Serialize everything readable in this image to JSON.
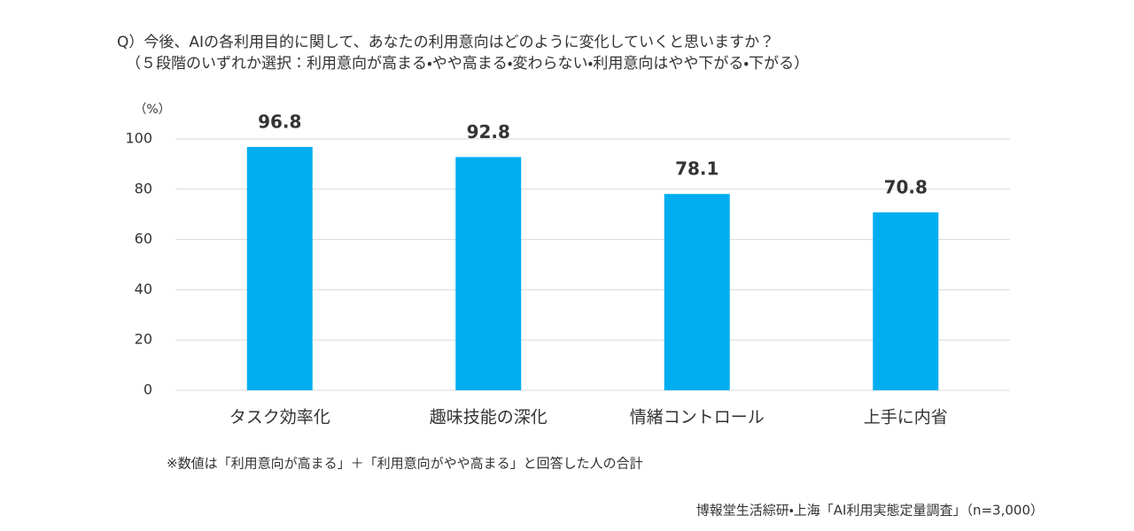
{
  "chart_data": {
    "type": "bar",
    "title": "Q）今後、AIの各利用目的に関して、あなたの利用意向はどのように変化していくと思いますか？",
    "subtitle": "（５段階のいずれか選択：利用意向が高まる・やや高まる・変わらない・利用意向はやや下がる・下がる）",
    "y_axis_label": "（%）",
    "categories": [
      "タスク効率化",
      "趣味技能の深化",
      "情緒コントロール",
      "上手に内省"
    ],
    "values": [
      96.8,
      92.8,
      78.1,
      70.8
    ],
    "color": "#00aeef",
    "ylim": [
      0,
      100
    ],
    "yticks": [
      0,
      20,
      40,
      60,
      80,
      100
    ],
    "grid": true,
    "note": "※数値は「利用意向が高まる」＋「利用意向がやや高まる」と回答した人の合計",
    "source": "博報堂生活綜研・上海「AI利用実態定量調査」（n=3,000）"
  }
}
